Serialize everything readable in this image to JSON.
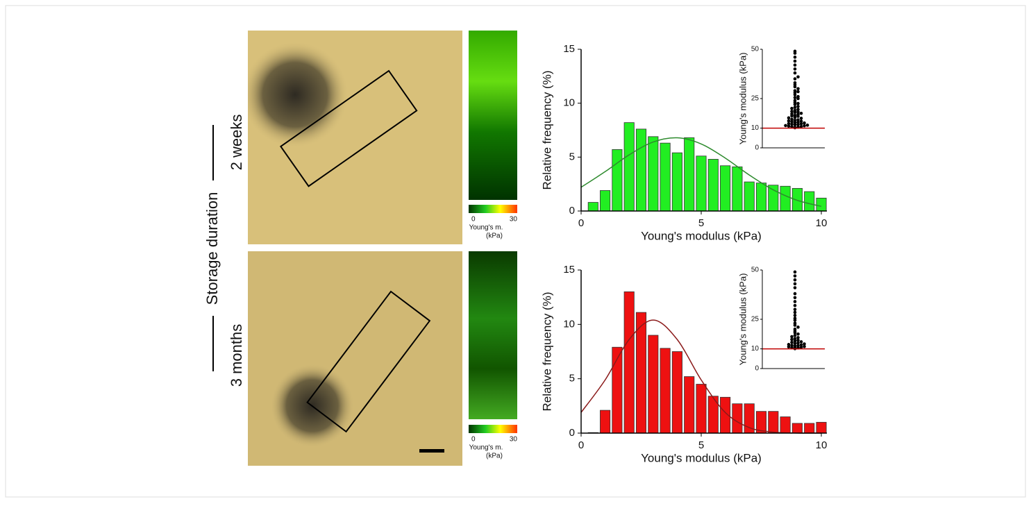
{
  "panel": {
    "side_label": "Storage duration",
    "row_labels": [
      "2 weeks",
      "3 months"
    ],
    "colorbar": {
      "ticks": [
        0,
        30
      ],
      "label": [
        "Young's m.",
        "(kPa)"
      ]
    }
  },
  "chart_data": [
    {
      "type": "histogram",
      "xlabel": "Young's modulus (kPa)",
      "ylabel": "Relative frequency (%)",
      "color": "#22ee22",
      "bins": [
        0.25,
        0.75,
        1.25,
        1.75,
        2.25,
        2.75,
        3.25,
        3.75,
        4.25,
        4.75,
        5.25,
        5.75,
        6.25,
        6.75,
        7.25,
        7.75,
        8.25,
        8.75,
        9.25,
        9.75,
        10.25
      ],
      "values": [
        0.8,
        1.9,
        5.7,
        8.2,
        7.6,
        6.9,
        6.3,
        5.4,
        6.8,
        5.1,
        4.8,
        4.2,
        4.1,
        2.7,
        2.6,
        2.4,
        2.3,
        2.1,
        1.8,
        1.2
      ],
      "fit": {
        "color": "#2e8b2e",
        "x": [
          0,
          1,
          2,
          3,
          4,
          5,
          6,
          7,
          8,
          9,
          10
        ],
        "values": [
          2.2,
          3.65,
          5.21,
          6.4,
          6.79,
          6.22,
          4.91,
          3.34,
          1.96,
          0.99,
          0.43
        ]
      },
      "xlim": [
        0,
        10
      ],
      "xticks": [
        0,
        5,
        10
      ],
      "ylim": [
        0,
        15
      ],
      "yticks": [
        0,
        5,
        10,
        15
      ]
    },
    {
      "type": "strip",
      "ylabel": "Young's modulus (kPa)",
      "color": "#000000",
      "threshold": 10,
      "threshold_color": "#c00000",
      "ylim": [
        0,
        50
      ],
      "yticks": [
        0,
        10,
        25,
        50
      ],
      "values": [
        10.2,
        10.3,
        10.5,
        10.7,
        10.8,
        11,
        11.2,
        11.3,
        11.5,
        11.7,
        11.8,
        12,
        12.2,
        12.3,
        12.6,
        12.8,
        13,
        13.3,
        13.5,
        13.7,
        14,
        14.2,
        14.5,
        15,
        15.2,
        15.5,
        16,
        16.2,
        16.5,
        17,
        17.2,
        17.5,
        18,
        18.2,
        18.5,
        19,
        19.5,
        20,
        20.5,
        21,
        22,
        22.5,
        23,
        24,
        25,
        25.5,
        26,
        27,
        28,
        28.5,
        29,
        30,
        31,
        32,
        33,
        35,
        36,
        38,
        40,
        42,
        44,
        46,
        48,
        49
      ]
    },
    {
      "type": "histogram",
      "xlabel": "Young's modulus (kPa)",
      "ylabel": "Relative frequency (%)",
      "color": "#ee1111",
      "bins": [
        0.25,
        0.75,
        1.25,
        1.75,
        2.25,
        2.75,
        3.25,
        3.75,
        4.25,
        4.75,
        5.25,
        5.75,
        6.25,
        6.75,
        7.25,
        7.75,
        8.25,
        8.75,
        9.25,
        9.75,
        10.25
      ],
      "values": [
        0.05,
        2.1,
        7.9,
        13.0,
        11.1,
        9.0,
        7.8,
        7.5,
        5.2,
        4.5,
        3.4,
        3.3,
        2.7,
        2.7,
        2.0,
        2.0,
        1.5,
        0.9,
        0.9,
        1.0
      ],
      "fit": {
        "color": "#8b1a1a",
        "x": [
          0,
          1,
          2,
          3,
          4,
          5,
          6,
          7,
          8,
          9,
          10
        ],
        "values": [
          1.9,
          4.89,
          8.61,
          10.4,
          8.61,
          4.89,
          1.9,
          0.51,
          0.09,
          0.01,
          0
        ]
      },
      "xlim": [
        0,
        10
      ],
      "xticks": [
        0,
        5,
        10
      ],
      "ylim": [
        0,
        15
      ],
      "yticks": [
        0,
        5,
        10,
        15
      ]
    },
    {
      "type": "strip",
      "ylabel": "Young's modulus (kPa)",
      "color": "#000000",
      "threshold": 10,
      "threshold_color": "#c00000",
      "ylim": [
        0,
        50
      ],
      "yticks": [
        0,
        10,
        25,
        50
      ],
      "values": [
        10.1,
        10.3,
        10.5,
        10.6,
        10.8,
        11,
        11.2,
        11.4,
        11.6,
        11.8,
        12,
        12.2,
        12.5,
        12.7,
        13,
        13.3,
        13.6,
        14,
        14.4,
        14.8,
        15.2,
        15.7,
        16.2,
        16.8,
        17.5,
        18.2,
        19,
        20,
        21,
        22,
        23,
        24.5,
        25.5,
        27,
        28.5,
        30,
        32,
        34,
        36,
        38,
        41,
        43,
        45,
        47,
        49
      ]
    }
  ]
}
